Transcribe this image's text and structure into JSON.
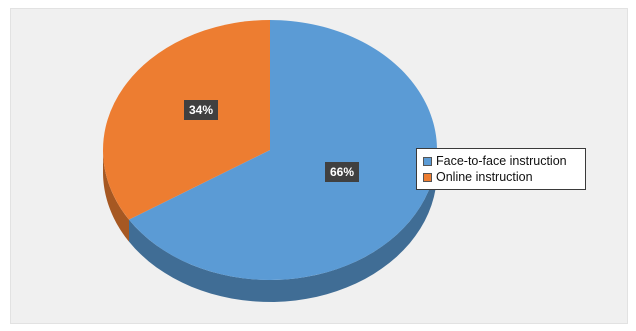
{
  "chart_data": {
    "type": "pie",
    "title": "",
    "categories": [
      "Face-to-face instruction",
      "Online instruction"
    ],
    "values": [
      66,
      34
    ],
    "data_labels": [
      "66%",
      "34%"
    ],
    "colors": [
      "#5b9bd5",
      "#ed7d31"
    ],
    "legend_position": "right",
    "style": "3d"
  }
}
